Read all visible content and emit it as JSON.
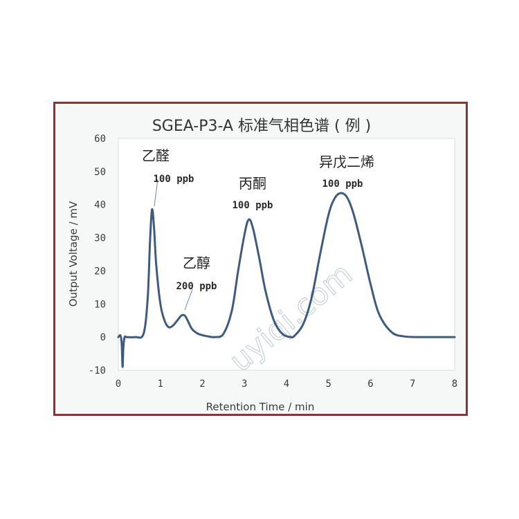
{
  "chart_data": {
    "type": "line",
    "title": "SGEA-P3-A 标准气相色谱 ( 例 )",
    "xlabel": "Retention Time / min",
    "ylabel": "Output Voltage / mV",
    "xlim": [
      0,
      8
    ],
    "ylim": [
      -10,
      60
    ],
    "xticks": [
      0,
      1,
      2,
      3,
      4,
      5,
      6,
      7,
      8
    ],
    "yticks": [
      -10,
      0,
      10,
      20,
      30,
      40,
      50,
      60
    ],
    "grid": false,
    "line_color": "#3d5a80",
    "series": [
      {
        "x": [
          0,
          0.05,
          0.08,
          0.1,
          0.12,
          0.15,
          0.2,
          0.4,
          0.6,
          0.7,
          0.75,
          0.8,
          0.85,
          0.9,
          1.0,
          1.1,
          1.2,
          1.3,
          1.4,
          1.5,
          1.58,
          1.65,
          1.75,
          1.9,
          2.1,
          2.3,
          2.5,
          2.7,
          2.85,
          3.0,
          3.1,
          3.2,
          3.35,
          3.5,
          3.7,
          3.9,
          4.1,
          4.2,
          4.4,
          4.6,
          4.8,
          5.0,
          5.15,
          5.3,
          5.45,
          5.6,
          5.8,
          6.0,
          6.2,
          6.5,
          6.8,
          7.2,
          7.6,
          8.0
        ],
        "y": [
          0,
          0.5,
          -2,
          -9,
          -3,
          0,
          0,
          0,
          1,
          12,
          28,
          38.5,
          33,
          22,
          10,
          5,
          3,
          3.5,
          5,
          6.5,
          6.5,
          5,
          2.5,
          1,
          0.3,
          0,
          1,
          8,
          20,
          31,
          35.5,
          33,
          24,
          14,
          5,
          1,
          0,
          0.5,
          4,
          12,
          25,
          37,
          42,
          43.5,
          42,
          37,
          27,
          16,
          7,
          1.5,
          0.2,
          0,
          0,
          0
        ]
      }
    ],
    "annotations": [
      {
        "name": "乙醛",
        "conc": "100 ppb"
      },
      {
        "name": "乙醇",
        "conc": "200 ppb"
      },
      {
        "name": "丙酮",
        "conc": "100 ppb"
      },
      {
        "name": "异戊二烯",
        "conc": "100 ppb"
      }
    ],
    "watermark": "uyiqi.com"
  }
}
